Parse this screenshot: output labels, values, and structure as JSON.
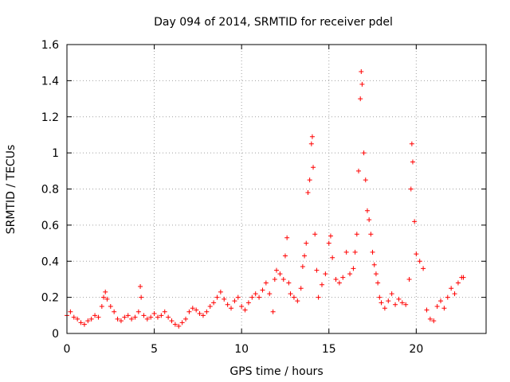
{
  "chart_data": {
    "type": "scatter",
    "title": "Day 094 of 2014, SRMTID for receiver pdel",
    "xlabel": "GPS time / hours",
    "ylabel": "SRMTID / TECUs",
    "xlim": [
      0,
      24
    ],
    "ylim": [
      0,
      1.6
    ],
    "grid": true,
    "marker": "+",
    "color": "#ff0000",
    "xticks": [
      0,
      5,
      10,
      15,
      20
    ],
    "xtick_labels": [
      "0",
      "5",
      "10",
      "15",
      "20"
    ],
    "yticks": [
      0,
      0.2,
      0.4,
      0.6,
      0.8,
      1,
      1.2,
      1.4,
      1.6
    ],
    "ytick_labels": [
      "0",
      "0.2",
      "0.4",
      "0.6",
      "0.8",
      "1",
      "1.2",
      "1.4",
      "1.6"
    ],
    "series": [
      {
        "name": "SRMTID",
        "points": [
          [
            0.0,
            0.1
          ],
          [
            0.2,
            0.12
          ],
          [
            0.4,
            0.09
          ],
          [
            0.6,
            0.08
          ],
          [
            0.8,
            0.06
          ],
          [
            1.0,
            0.05
          ],
          [
            1.2,
            0.07
          ],
          [
            1.4,
            0.08
          ],
          [
            1.6,
            0.1
          ],
          [
            1.8,
            0.09
          ],
          [
            2.0,
            0.15
          ],
          [
            2.1,
            0.2
          ],
          [
            2.2,
            0.23
          ],
          [
            2.3,
            0.19
          ],
          [
            2.5,
            0.15
          ],
          [
            2.7,
            0.12
          ],
          [
            2.9,
            0.08
          ],
          [
            3.1,
            0.07
          ],
          [
            3.3,
            0.09
          ],
          [
            3.5,
            0.1
          ],
          [
            3.7,
            0.08
          ],
          [
            3.9,
            0.09
          ],
          [
            4.1,
            0.12
          ],
          [
            4.2,
            0.26
          ],
          [
            4.25,
            0.2
          ],
          [
            4.4,
            0.1
          ],
          [
            4.6,
            0.08
          ],
          [
            4.8,
            0.09
          ],
          [
            5.0,
            0.11
          ],
          [
            5.2,
            0.09
          ],
          [
            5.4,
            0.1
          ],
          [
            5.6,
            0.12
          ],
          [
            5.8,
            0.09
          ],
          [
            6.0,
            0.07
          ],
          [
            6.2,
            0.05
          ],
          [
            6.4,
            0.04
          ],
          [
            6.6,
            0.06
          ],
          [
            6.8,
            0.08
          ],
          [
            7.0,
            0.12
          ],
          [
            7.2,
            0.14
          ],
          [
            7.4,
            0.13
          ],
          [
            7.6,
            0.11
          ],
          [
            7.8,
            0.1
          ],
          [
            8.0,
            0.12
          ],
          [
            8.2,
            0.15
          ],
          [
            8.4,
            0.17
          ],
          [
            8.6,
            0.2
          ],
          [
            8.8,
            0.23
          ],
          [
            9.0,
            0.19
          ],
          [
            9.2,
            0.16
          ],
          [
            9.4,
            0.14
          ],
          [
            9.6,
            0.18
          ],
          [
            9.8,
            0.2
          ],
          [
            10.0,
            0.15
          ],
          [
            10.2,
            0.13
          ],
          [
            10.4,
            0.17
          ],
          [
            10.6,
            0.2
          ],
          [
            10.8,
            0.22
          ],
          [
            11.0,
            0.2
          ],
          [
            11.2,
            0.24
          ],
          [
            11.4,
            0.28
          ],
          [
            11.6,
            0.22
          ],
          [
            11.8,
            0.12
          ],
          [
            11.9,
            0.3
          ],
          [
            12.0,
            0.35
          ],
          [
            12.2,
            0.33
          ],
          [
            12.4,
            0.3
          ],
          [
            12.5,
            0.43
          ],
          [
            12.6,
            0.53
          ],
          [
            12.7,
            0.28
          ],
          [
            12.8,
            0.22
          ],
          [
            13.0,
            0.2
          ],
          [
            13.2,
            0.18
          ],
          [
            13.4,
            0.25
          ],
          [
            13.5,
            0.37
          ],
          [
            13.6,
            0.43
          ],
          [
            13.7,
            0.5
          ],
          [
            13.8,
            0.78
          ],
          [
            13.9,
            0.85
          ],
          [
            14.0,
            1.05
          ],
          [
            14.05,
            1.09
          ],
          [
            14.1,
            0.92
          ],
          [
            14.2,
            0.55
          ],
          [
            14.3,
            0.35
          ],
          [
            14.4,
            0.2
          ],
          [
            14.6,
            0.27
          ],
          [
            14.8,
            0.33
          ],
          [
            15.0,
            0.5
          ],
          [
            15.1,
            0.54
          ],
          [
            15.2,
            0.42
          ],
          [
            15.4,
            0.3
          ],
          [
            15.6,
            0.28
          ],
          [
            15.8,
            0.31
          ],
          [
            16.0,
            0.45
          ],
          [
            16.2,
            0.33
          ],
          [
            16.4,
            0.36
          ],
          [
            16.5,
            0.45
          ],
          [
            16.6,
            0.55
          ],
          [
            16.7,
            0.9
          ],
          [
            16.8,
            1.3
          ],
          [
            16.85,
            1.45
          ],
          [
            16.9,
            1.38
          ],
          [
            17.0,
            1.0
          ],
          [
            17.1,
            0.85
          ],
          [
            17.2,
            0.68
          ],
          [
            17.3,
            0.63
          ],
          [
            17.4,
            0.55
          ],
          [
            17.5,
            0.45
          ],
          [
            17.6,
            0.38
          ],
          [
            17.7,
            0.33
          ],
          [
            17.8,
            0.28
          ],
          [
            17.9,
            0.2
          ],
          [
            18.0,
            0.17
          ],
          [
            18.2,
            0.14
          ],
          [
            18.4,
            0.18
          ],
          [
            18.6,
            0.22
          ],
          [
            18.8,
            0.16
          ],
          [
            19.0,
            0.19
          ],
          [
            19.2,
            0.17
          ],
          [
            19.4,
            0.16
          ],
          [
            19.6,
            0.3
          ],
          [
            19.7,
            0.8
          ],
          [
            19.75,
            1.05
          ],
          [
            19.8,
            0.95
          ],
          [
            19.9,
            0.62
          ],
          [
            20.0,
            0.44
          ],
          [
            20.2,
            0.4
          ],
          [
            20.4,
            0.36
          ],
          [
            20.6,
            0.13
          ],
          [
            20.8,
            0.08
          ],
          [
            21.0,
            0.07
          ],
          [
            21.2,
            0.15
          ],
          [
            21.4,
            0.18
          ],
          [
            21.6,
            0.14
          ],
          [
            21.8,
            0.2
          ],
          [
            22.0,
            0.25
          ],
          [
            22.2,
            0.22
          ],
          [
            22.4,
            0.28
          ],
          [
            22.6,
            0.31
          ],
          [
            22.7,
            0.31
          ]
        ]
      }
    ]
  }
}
